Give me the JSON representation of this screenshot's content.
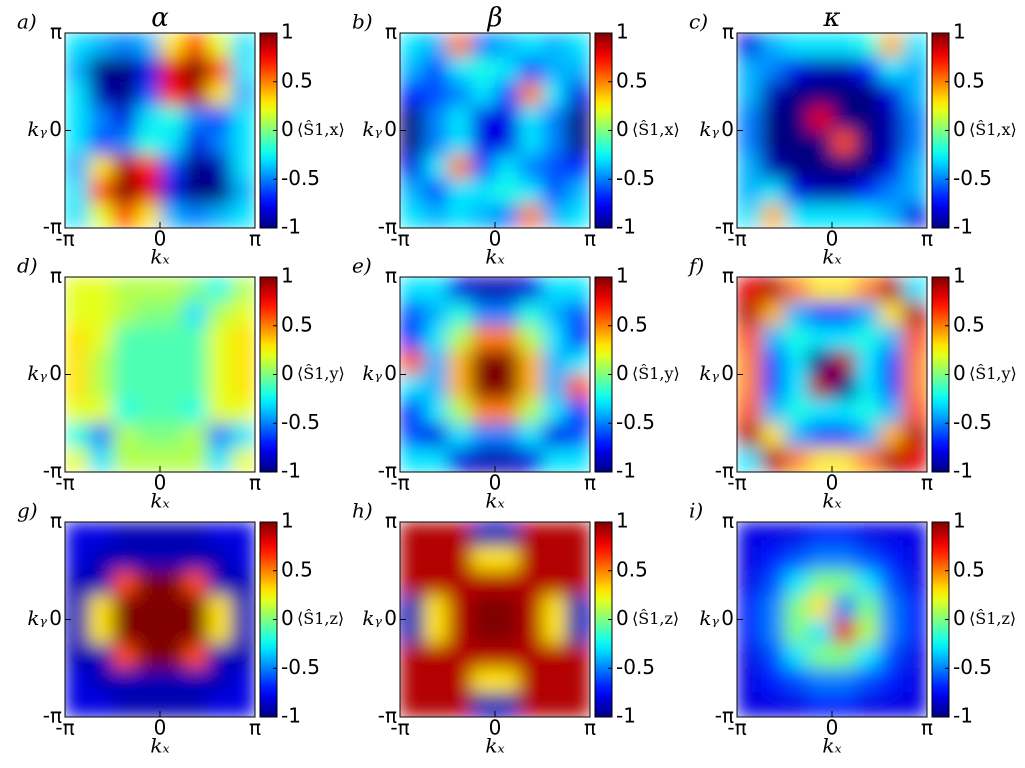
{
  "chart_data": [
    {
      "type": "heatmap",
      "panel_label": "a)",
      "title": "α",
      "xlabel": "𝑘ₓ",
      "ylabel": "𝑘ᵧ",
      "colorbar_label": "⟨Ŝ1,x⟩",
      "colormap": "jet",
      "xlim": [
        -3.14159,
        3.14159
      ],
      "ylim": [
        -3.14159,
        3.14159
      ],
      "xticks": [
        {
          "value": -3.14159,
          "label": "-π"
        },
        0,
        {
          "value": 3.14159,
          "label": "π"
        }
      ],
      "yticks": [
        {
          "value": -3.14159,
          "label": "-π"
        },
        0,
        {
          "value": 3.14159,
          "label": "π"
        }
      ],
      "clim": [
        -1,
        1
      ],
      "cticks": [
        1,
        0.5,
        0,
        -0.5,
        -1
      ],
      "z": [
        [
          -0.3,
          -0.4,
          -0.5,
          -0.4,
          0.3,
          0.6,
          0.2,
          -0.3
        ],
        [
          -0.4,
          -1,
          -1,
          -0.8,
          0.8,
          1,
          0.6,
          -0.3
        ],
        [
          -0.3,
          -0.9,
          -1,
          -0.6,
          0.7,
          0.9,
          0.3,
          -0.4
        ],
        [
          -0.3,
          -0.5,
          -0.8,
          -0.3,
          -0.2,
          -0.5,
          -0.6,
          -0.3
        ],
        [
          -0.3,
          -0.6,
          -0.5,
          -0.2,
          -0.3,
          -0.8,
          -0.5,
          -0.3
        ],
        [
          -0.4,
          0.3,
          0.9,
          0.7,
          -0.6,
          -1,
          -0.9,
          -0.3
        ],
        [
          -0.3,
          0.6,
          1,
          0.8,
          -0.8,
          -1,
          -1,
          -0.4
        ],
        [
          -0.3,
          0.2,
          0.6,
          0.3,
          -0.4,
          -0.5,
          -0.4,
          -0.3
        ]
      ]
    },
    {
      "type": "heatmap",
      "panel_label": "b)",
      "title": "β",
      "xlabel": "𝑘ₓ",
      "ylabel": "𝑘ᵧ",
      "colorbar_label": "⟨Ŝ1,x⟩",
      "colormap": "jet",
      "xlim": [
        -3.14159,
        3.14159
      ],
      "ylim": [
        -3.14159,
        3.14159
      ],
      "xticks": [
        {
          "value": -3.14159,
          "label": "-π"
        },
        0,
        {
          "value": 3.14159,
          "label": "π"
        }
      ],
      "yticks": [
        {
          "value": -3.14159,
          "label": "-π"
        },
        0,
        {
          "value": 3.14159,
          "label": "π"
        }
      ],
      "clim": [
        -1,
        1
      ],
      "cticks": [
        1,
        0.5,
        0,
        -0.5,
        -1
      ],
      "z": [
        [
          -0.3,
          -0.4,
          0.5,
          -0.5,
          -0.4,
          -0.3,
          -0.4,
          -0.3
        ],
        [
          -0.4,
          -0.6,
          -0.3,
          -0.2,
          -0.3,
          -0.6,
          -0.4,
          -0.4
        ],
        [
          -0.7,
          -0.6,
          -0.5,
          -0.3,
          -0.6,
          0.5,
          -0.3,
          -0.8
        ],
        [
          -1,
          -0.5,
          -0.3,
          -0.8,
          -0.8,
          -0.3,
          -0.5,
          -1
        ],
        [
          -1,
          -0.5,
          -0.3,
          -0.8,
          -0.8,
          -0.3,
          -0.5,
          -1
        ],
        [
          -0.8,
          -0.3,
          0.5,
          -0.6,
          -0.3,
          -0.5,
          -0.6,
          -0.7
        ],
        [
          -0.4,
          -0.6,
          -0.3,
          -0.3,
          -0.2,
          -0.3,
          -0.6,
          -0.4
        ],
        [
          -0.3,
          -0.4,
          -0.3,
          -0.4,
          -0.5,
          0.5,
          -0.4,
          -0.3
        ]
      ]
    },
    {
      "type": "heatmap",
      "panel_label": "c)",
      "title": "κ",
      "xlabel": "𝑘ₓ",
      "ylabel": "𝑘ᵧ",
      "colorbar_label": "⟨Ŝ1,x⟩",
      "colormap": "jet",
      "xlim": [
        -3.14159,
        3.14159
      ],
      "ylim": [
        -3.14159,
        3.14159
      ],
      "xticks": [
        {
          "value": -3.14159,
          "label": "-π"
        },
        0,
        {
          "value": 3.14159,
          "label": "π"
        }
      ],
      "yticks": [
        {
          "value": -3.14159,
          "label": "-π"
        },
        0,
        {
          "value": 3.14159,
          "label": "π"
        }
      ],
      "clim": [
        -1,
        1
      ],
      "cticks": [
        1,
        0.5,
        0,
        -0.5,
        -1
      ],
      "z": [
        [
          -0.8,
          -0.4,
          -0.3,
          -0.3,
          -0.3,
          -0.2,
          0.4,
          -0.3
        ],
        [
          -0.4,
          -0.5,
          -0.8,
          -0.9,
          -0.9,
          -0.7,
          -0.3,
          -0.4
        ],
        [
          -0.4,
          -0.9,
          -1,
          -1,
          -1,
          -1,
          -0.8,
          -0.4
        ],
        [
          -0.5,
          -1,
          -1,
          0.8,
          -1,
          -1,
          -0.9,
          -0.5
        ],
        [
          -0.5,
          -1,
          -1,
          -1,
          0.6,
          -1,
          -0.9,
          -0.5
        ],
        [
          -0.4,
          -0.9,
          -1,
          -1,
          -1,
          -1,
          -0.8,
          -0.4
        ],
        [
          -0.4,
          -0.3,
          -0.8,
          -0.9,
          -0.9,
          -0.7,
          -0.5,
          -0.4
        ],
        [
          -0.3,
          0.4,
          -0.3,
          -0.3,
          -0.3,
          -0.3,
          -0.4,
          -0.8
        ]
      ]
    },
    {
      "type": "heatmap",
      "panel_label": "d)",
      "xlabel": "𝑘ₓ",
      "ylabel": "𝑘ᵧ",
      "colorbar_label": "⟨Ŝ1,y⟩",
      "colormap": "jet",
      "xlim": [
        -3.14159,
        3.14159
      ],
      "ylim": [
        -3.14159,
        3.14159
      ],
      "xticks": [
        {
          "value": -3.14159,
          "label": "-π"
        },
        0,
        {
          "value": 3.14159,
          "label": "π"
        }
      ],
      "yticks": [
        {
          "value": -3.14159,
          "label": "-π"
        },
        0,
        {
          "value": 3.14159,
          "label": "π"
        }
      ],
      "clim": [
        -1,
        1
      ],
      "cticks": [
        1,
        0.5,
        0,
        -0.5,
        -1
      ],
      "z": [
        [
          0.2,
          0.2,
          0.1,
          0.1,
          0.1,
          0,
          -0.2,
          0.1
        ],
        [
          0.2,
          0.2,
          0.1,
          0,
          0,
          -0.3,
          0.1,
          0.2
        ],
        [
          0.3,
          0.2,
          -0.1,
          -0.1,
          -0.1,
          -0.1,
          0.2,
          0.3
        ],
        [
          0.3,
          0.1,
          -0.1,
          -0.1,
          -0.1,
          -0.1,
          0.2,
          0.3
        ],
        [
          0.3,
          0.1,
          -0.1,
          -0.1,
          -0.1,
          -0.1,
          0.2,
          0.3
        ],
        [
          0.2,
          0.2,
          -0.2,
          -0.1,
          -0.1,
          -0.2,
          0.2,
          0.2
        ],
        [
          -0.2,
          -0.5,
          0.1,
          0,
          0,
          0.1,
          -0.5,
          -0.3
        ],
        [
          0.2,
          -0.3,
          0.1,
          0.1,
          0.1,
          0.1,
          -0.3,
          0.2
        ]
      ]
    },
    {
      "type": "heatmap",
      "panel_label": "e)",
      "xlabel": "𝑘ₓ",
      "ylabel": "𝑘ᵧ",
      "colorbar_label": "⟨Ŝ1,y⟩",
      "colormap": "jet",
      "xlim": [
        -3.14159,
        3.14159
      ],
      "ylim": [
        -3.14159,
        3.14159
      ],
      "xticks": [
        {
          "value": -3.14159,
          "label": "-π"
        },
        0,
        {
          "value": 3.14159,
          "label": "π"
        }
      ],
      "yticks": [
        {
          "value": -3.14159,
          "label": "-π"
        },
        0,
        {
          "value": 3.14159,
          "label": "π"
        }
      ],
      "clim": [
        -1,
        1
      ],
      "cticks": [
        1,
        0.5,
        0,
        -0.5,
        -1
      ],
      "z": [
        [
          -0.3,
          -0.3,
          -0.8,
          -0.9,
          -0.9,
          -0.8,
          -0.3,
          -0.3
        ],
        [
          -0.6,
          -0.4,
          -0.2,
          -0.5,
          -0.5,
          -0.2,
          -0.4,
          -0.6
        ],
        [
          -0.7,
          -0.3,
          0.1,
          0.5,
          0.5,
          0.1,
          -0.3,
          -0.7
        ],
        [
          0.6,
          -0.4,
          0.4,
          1,
          1,
          0.4,
          -0.4,
          -0.3
        ],
        [
          -0.3,
          -0.4,
          0.4,
          1,
          1,
          0.4,
          -0.4,
          0.6
        ],
        [
          -0.7,
          -0.3,
          0.1,
          0.5,
          0.5,
          0.1,
          -0.3,
          -0.7
        ],
        [
          -0.6,
          -0.8,
          -0.3,
          -0.5,
          -0.5,
          -0.3,
          -0.8,
          -0.6
        ],
        [
          -0.3,
          -0.3,
          -0.8,
          -0.9,
          -0.9,
          -0.8,
          -0.3,
          -0.3
        ]
      ]
    },
    {
      "type": "heatmap",
      "panel_label": "f)",
      "xlabel": "𝑘ₓ",
      "ylabel": "𝑘ᵧ",
      "colorbar_label": "⟨Ŝ1,y⟩",
      "colormap": "jet",
      "xlim": [
        -3.14159,
        3.14159
      ],
      "ylim": [
        -3.14159,
        3.14159
      ],
      "xticks": [
        {
          "value": -3.14159,
          "label": "-π"
        },
        0,
        {
          "value": 3.14159,
          "label": "π"
        }
      ],
      "yticks": [
        {
          "value": -3.14159,
          "label": "-π"
        },
        0,
        {
          "value": 3.14159,
          "label": "π"
        }
      ],
      "clim": [
        -1,
        1
      ],
      "cticks": [
        1,
        0.5,
        0,
        -0.5,
        -1
      ],
      "z": [
        [
          0.8,
          0.9,
          0.5,
          0.3,
          0.3,
          0.5,
          0.9,
          -0.3
        ],
        [
          0.9,
          0.4,
          -0.4,
          -0.6,
          -0.6,
          -0.4,
          0.3,
          0.9
        ],
        [
          0.6,
          -0.4,
          -0.2,
          -0.3,
          -0.3,
          -0.2,
          -0.4,
          0.6
        ],
        [
          0.5,
          -0.6,
          -0.3,
          -1,
          0.9,
          -0.3,
          -0.6,
          0.5
        ],
        [
          0.5,
          -0.6,
          -0.3,
          0.9,
          -1,
          -0.3,
          -0.6,
          0.5
        ],
        [
          0.6,
          -0.4,
          -0.2,
          -0.3,
          -0.3,
          -0.2,
          -0.4,
          0.6
        ],
        [
          0.9,
          0.3,
          -0.4,
          -0.6,
          -0.6,
          -0.4,
          0.4,
          0.9
        ],
        [
          -0.3,
          0.9,
          0.5,
          0.3,
          0.3,
          0.5,
          0.9,
          0.8
        ]
      ]
    },
    {
      "type": "heatmap",
      "panel_label": "g)",
      "xlabel": "𝑘ₓ",
      "ylabel": "𝑘ᵧ",
      "colorbar_label": "⟨Ŝ1,z⟩",
      "colormap": "jet",
      "xlim": [
        -3.14159,
        3.14159
      ],
      "ylim": [
        -3.14159,
        3.14159
      ],
      "xticks": [
        {
          "value": -3.14159,
          "label": "-π"
        },
        0,
        {
          "value": 3.14159,
          "label": "π"
        }
      ],
      "yticks": [
        {
          "value": -3.14159,
          "label": "-π"
        },
        0,
        {
          "value": 3.14159,
          "label": "π"
        }
      ],
      "clim": [
        -1,
        1
      ],
      "cticks": [
        1,
        0.5,
        0,
        -0.5,
        -1
      ],
      "z": [
        [
          -0.8,
          -0.8,
          -0.9,
          -0.9,
          -0.9,
          -0.9,
          -0.8,
          -0.8
        ],
        [
          -0.8,
          -0.9,
          -0.9,
          -0.9,
          -0.9,
          -0.9,
          -0.9,
          -0.8
        ],
        [
          -0.9,
          -0.9,
          0.6,
          1,
          1,
          0.6,
          -0.9,
          -0.9
        ],
        [
          -0.9,
          0.3,
          1,
          1,
          1,
          1,
          0.3,
          -0.9
        ],
        [
          -0.9,
          0.3,
          1,
          1,
          1,
          1,
          0.3,
          -0.9
        ],
        [
          -0.9,
          -0.9,
          0.6,
          1,
          1,
          0.6,
          -0.9,
          -0.9
        ],
        [
          -0.8,
          -0.9,
          -0.9,
          -0.9,
          -0.9,
          -0.9,
          -0.9,
          -0.8
        ],
        [
          -0.8,
          -0.8,
          -0.9,
          -0.9,
          -0.9,
          -0.9,
          -0.8,
          -0.8
        ]
      ]
    },
    {
      "type": "heatmap",
      "panel_label": "h)",
      "xlabel": "𝑘ₓ",
      "ylabel": "𝑘ᵧ",
      "colorbar_label": "⟨Ŝ1,z⟩",
      "colormap": "jet",
      "xlim": [
        -3.14159,
        3.14159
      ],
      "ylim": [
        -3.14159,
        3.14159
      ],
      "xticks": [
        {
          "value": -3.14159,
          "label": "-π"
        },
        0,
        {
          "value": 3.14159,
          "label": "π"
        }
      ],
      "yticks": [
        {
          "value": -3.14159,
          "label": "-π"
        },
        0,
        {
          "value": 3.14159,
          "label": "π"
        }
      ],
      "clim": [
        -1,
        1
      ],
      "cticks": [
        1,
        0.5,
        0,
        -0.5,
        -1
      ],
      "z": [
        [
          0.9,
          0.9,
          0.9,
          -0.9,
          -0.9,
          0.9,
          0.9,
          0.9
        ],
        [
          0.9,
          0.9,
          0.9,
          0.3,
          0.3,
          0.9,
          0.9,
          0.9
        ],
        [
          0.9,
          0.9,
          0.9,
          0.9,
          0.9,
          0.9,
          0.9,
          0.9
        ],
        [
          -0.9,
          0.3,
          0.9,
          1,
          1,
          0.9,
          0.3,
          -0.9
        ],
        [
          -0.9,
          0.3,
          0.9,
          1,
          1,
          0.9,
          0.3,
          -0.9
        ],
        [
          0.9,
          0.9,
          0.9,
          0.9,
          0.9,
          0.9,
          0.9,
          0.9
        ],
        [
          0.9,
          0.9,
          0.9,
          0.3,
          0.3,
          0.9,
          0.9,
          0.9
        ],
        [
          0.9,
          0.9,
          0.9,
          -0.9,
          -0.9,
          0.9,
          0.9,
          0.9
        ]
      ]
    },
    {
      "type": "heatmap",
      "panel_label": "i)",
      "xlabel": "𝑘ₓ",
      "ylabel": "𝑘ᵧ",
      "colorbar_label": "⟨Ŝ1,z⟩",
      "colormap": "jet",
      "xlim": [
        -3.14159,
        3.14159
      ],
      "ylim": [
        -3.14159,
        3.14159
      ],
      "xticks": [
        {
          "value": -3.14159,
          "label": "-π"
        },
        0,
        {
          "value": 3.14159,
          "label": "π"
        }
      ],
      "yticks": [
        {
          "value": -3.14159,
          "label": "-π"
        },
        0,
        {
          "value": 3.14159,
          "label": "π"
        }
      ],
      "clim": [
        -1,
        1
      ],
      "cticks": [
        1,
        0.5,
        0,
        -0.5,
        -1
      ],
      "z": [
        [
          -0.8,
          -0.8,
          -0.8,
          -0.7,
          -0.7,
          -0.8,
          -0.8,
          -0.8
        ],
        [
          -0.8,
          -0.7,
          -0.6,
          -0.5,
          -0.5,
          -0.6,
          -0.7,
          -0.8
        ],
        [
          -0.8,
          -0.6,
          -0.3,
          0,
          0,
          -0.3,
          -0.6,
          -0.8
        ],
        [
          -0.7,
          -0.5,
          0,
          0.3,
          -0.5,
          0,
          -0.5,
          -0.7
        ],
        [
          -0.7,
          -0.5,
          0,
          -0.3,
          0.8,
          0.1,
          -0.5,
          -0.7
        ],
        [
          -0.8,
          -0.6,
          -0.3,
          0,
          0,
          -0.3,
          -0.6,
          -0.8
        ],
        [
          -0.8,
          -0.7,
          -0.6,
          -0.5,
          -0.5,
          -0.6,
          -0.7,
          -0.8
        ],
        [
          -0.8,
          -0.8,
          -0.8,
          -0.7,
          -0.7,
          -0.8,
          -0.8,
          -0.8
        ]
      ]
    }
  ]
}
